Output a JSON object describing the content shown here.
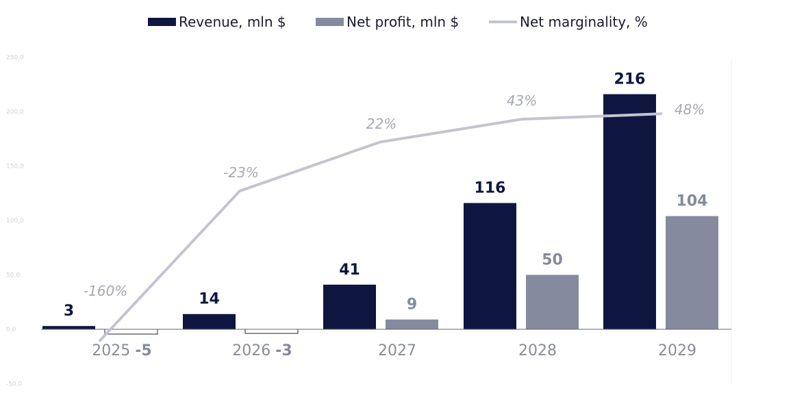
{
  "colors": {
    "revenue": "#0e1640",
    "profit": "#868a9e",
    "margin_line": "#c3c4cf",
    "axis": "#666666"
  },
  "legend": [
    {
      "label": "Revenue, mln $",
      "shape": "bar",
      "color": "#0e1640"
    },
    {
      "label": "Net profit, mln $",
      "shape": "bar",
      "color": "#868a9e"
    },
    {
      "label": "Net marginality, %",
      "shape": "line",
      "color": "#c3c4cf"
    }
  ],
  "chart_data": {
    "type": "bar",
    "categories": [
      "2025",
      "2026",
      "2027",
      "2028",
      "2029"
    ],
    "series": [
      {
        "name": "Revenue, mln $",
        "type": "bar",
        "values": [
          3,
          14,
          41,
          116,
          216
        ]
      },
      {
        "name": "Net profit, mln $",
        "type": "bar",
        "values": [
          -5,
          -3,
          9,
          50,
          104
        ]
      },
      {
        "name": "Net marginality, %",
        "type": "line",
        "values": [
          -160,
          -23,
          22,
          43,
          48
        ]
      }
    ],
    "data_labels": {
      "revenue": [
        "3",
        "14",
        "41",
        "116",
        "216"
      ],
      "profit": [
        "-5",
        "-3",
        "9",
        "50",
        "104"
      ],
      "margin": [
        "-160%",
        "-23%",
        "22%",
        "43%",
        "48%"
      ]
    },
    "y_ticks": [
      "-50,0",
      "0,0",
      "50,0",
      "100,0",
      "150,0",
      "200,0",
      "250,0"
    ],
    "y_tick_values": [
      -50,
      0,
      50,
      100,
      150,
      200,
      250
    ],
    "ylim": [
      -50,
      250
    ],
    "margin_line_points_in_bar_units": [
      -11,
      127,
      172,
      193,
      198
    ],
    "legend_position": "top",
    "grid": false
  }
}
